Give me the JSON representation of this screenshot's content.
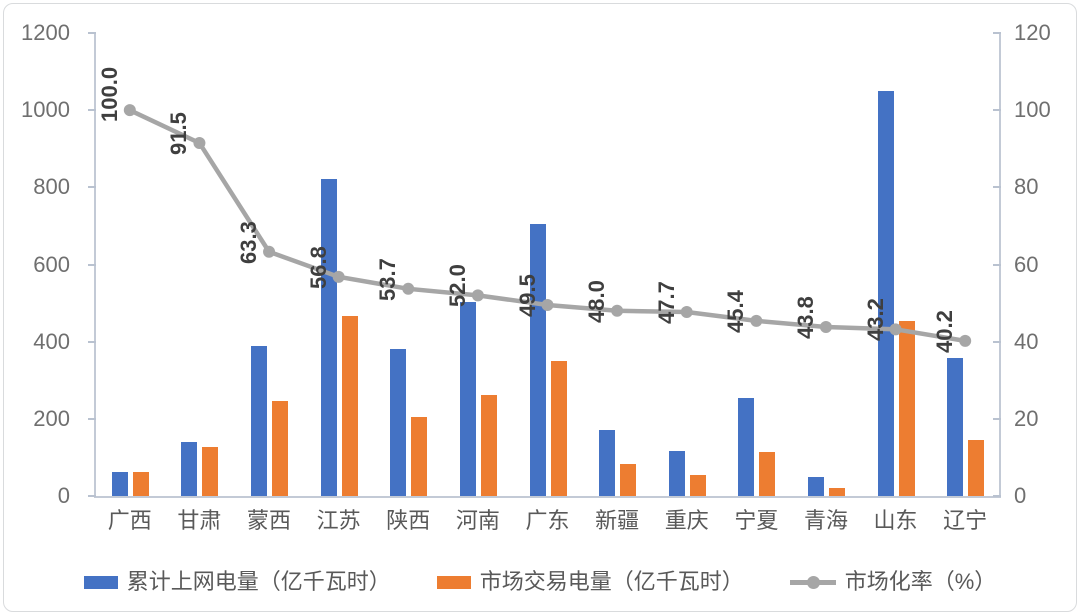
{
  "chart_data": {
    "type": "bar",
    "subtype": "bar-line-combo",
    "categories": [
      "广西",
      "甘肃",
      "蒙西",
      "江苏",
      "陕西",
      "河南",
      "广东",
      "新疆",
      "重庆",
      "宁夏",
      "青海",
      "山东",
      "辽宁"
    ],
    "series": [
      {
        "name": "累计上网电量（亿千瓦时）",
        "type": "bar",
        "axis": "left",
        "color": "#4472C4",
        "values": [
          62,
          140,
          390,
          822,
          380,
          503,
          706,
          172,
          116,
          254,
          50,
          1050,
          358
        ]
      },
      {
        "name": "市场交易电量（亿千瓦时）",
        "type": "bar",
        "axis": "left",
        "color": "#ED7D31",
        "values": [
          62,
          128,
          247,
          467,
          204,
          262,
          349,
          83,
          55,
          115,
          22,
          454,
          144
        ]
      },
      {
        "name": "市场化率（%）",
        "type": "line",
        "axis": "right",
        "color": "#A6A6A6",
        "values": [
          100.0,
          91.5,
          63.3,
          56.8,
          53.7,
          52.0,
          49.5,
          48.0,
          47.7,
          45.4,
          43.8,
          43.2,
          40.2
        ],
        "data_labels": [
          "100.0",
          "91.5",
          "63.3",
          "56.8",
          "53.7",
          "52.0",
          "49.5",
          "48.0",
          "47.7",
          "45.4",
          "43.8",
          "43.2",
          "40.2"
        ]
      }
    ],
    "left_axis": {
      "min": 0,
      "max": 1200,
      "step": 200,
      "ticks": [
        "0",
        "200",
        "400",
        "600",
        "800",
        "1000",
        "1200"
      ]
    },
    "right_axis": {
      "min": 0,
      "max": 120,
      "step": 20,
      "ticks": [
        "0",
        "20",
        "40",
        "60",
        "80",
        "100",
        "120"
      ]
    },
    "title": "",
    "xlabel": "",
    "ylabel": "",
    "grid": false,
    "legend_position": "bottom"
  },
  "colors": {
    "bar_blue": "#4472C4",
    "bar_orange": "#ED7D31",
    "line_gray": "#A6A6A6",
    "axis_text": "#6f6f6f",
    "category_text": "#595959",
    "data_label_text": "#3f3f3f",
    "axis_line": "#c3cad6"
  }
}
